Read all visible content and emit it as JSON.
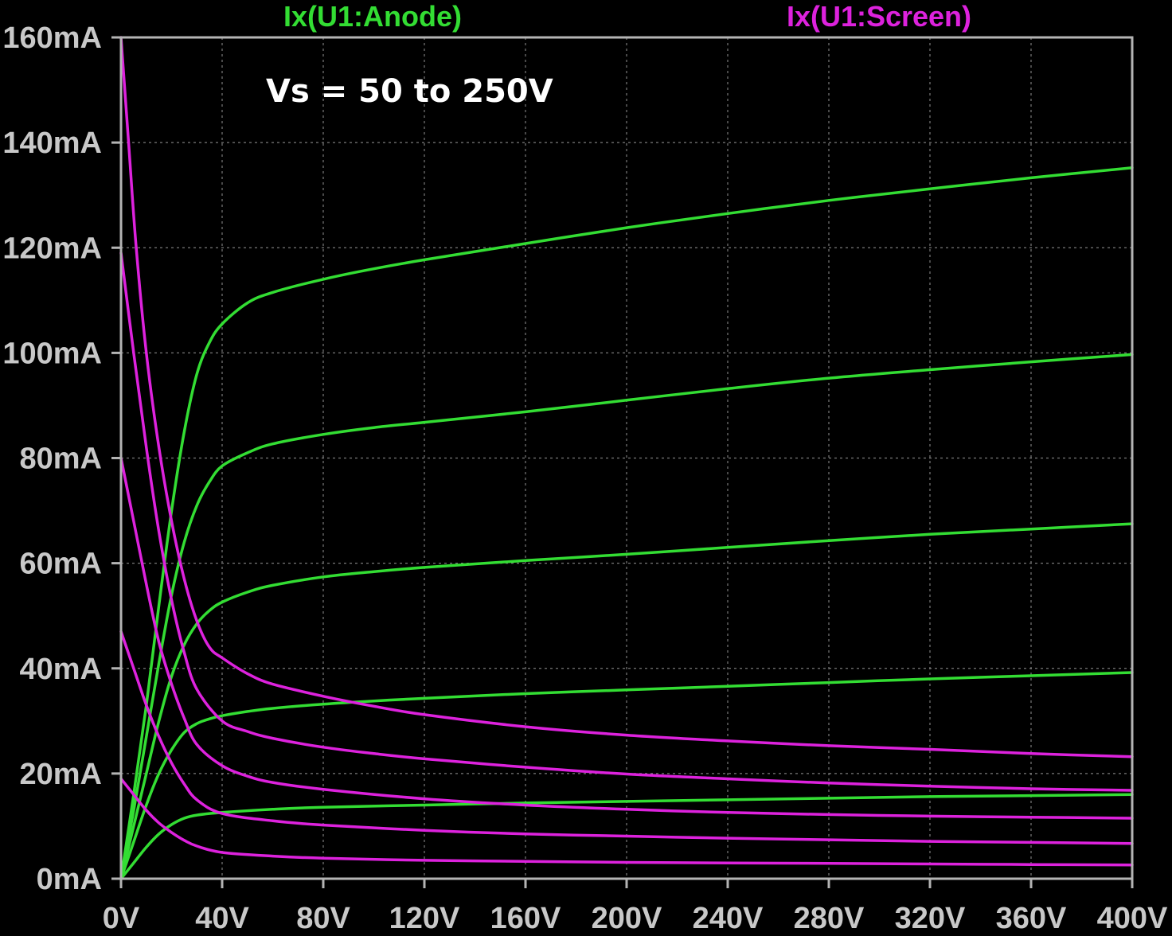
{
  "chart_data": {
    "type": "line",
    "xlim": [
      0,
      400
    ],
    "ylim": [
      0,
      160
    ],
    "x_ticks": [
      "0V",
      "40V",
      "80V",
      "120V",
      "160V",
      "200V",
      "240V",
      "280V",
      "320V",
      "360V",
      "400V"
    ],
    "y_ticks": [
      "0mA",
      "20mA",
      "40mA",
      "60mA",
      "80mA",
      "100mA",
      "120mA",
      "140mA",
      "160mA"
    ],
    "grid": true,
    "legend": [
      {
        "label": "Ix(U1:Anode)",
        "color": "#33dd33"
      },
      {
        "label": "Ix(U1:Screen)",
        "color": "#dd22dd"
      }
    ],
    "annotation": "Vs = 50 to 250V",
    "series": [
      {
        "group": "anode",
        "color": "#33dd33",
        "points": [
          [
            0,
            0
          ],
          [
            5,
            3
          ],
          [
            10,
            6
          ],
          [
            15,
            8.5
          ],
          [
            20,
            10.3
          ],
          [
            25,
            11.5
          ],
          [
            30,
            12.1
          ],
          [
            40,
            12.6
          ],
          [
            60,
            13.2
          ],
          [
            80,
            13.6
          ],
          [
            120,
            14
          ],
          [
            160,
            14.4
          ],
          [
            200,
            14.7
          ],
          [
            240,
            15
          ],
          [
            280,
            15.3
          ],
          [
            320,
            15.6
          ],
          [
            360,
            15.8
          ],
          [
            400,
            16
          ]
        ]
      },
      {
        "group": "anode",
        "color": "#33dd33",
        "points": [
          [
            0,
            0
          ],
          [
            5,
            7
          ],
          [
            10,
            14
          ],
          [
            15,
            20
          ],
          [
            20,
            24.5
          ],
          [
            25,
            27.8
          ],
          [
            30,
            29.5
          ],
          [
            35,
            30.4
          ],
          [
            40,
            31
          ],
          [
            50,
            31.8
          ],
          [
            60,
            32.4
          ],
          [
            80,
            33.2
          ],
          [
            100,
            33.8
          ],
          [
            120,
            34.3
          ],
          [
            160,
            35.2
          ],
          [
            200,
            35.9
          ],
          [
            240,
            36.6
          ],
          [
            280,
            37.3
          ],
          [
            320,
            38
          ],
          [
            360,
            38.6
          ],
          [
            400,
            39.2
          ]
        ]
      },
      {
        "group": "anode",
        "color": "#33dd33",
        "points": [
          [
            0,
            0
          ],
          [
            5,
            10
          ],
          [
            10,
            20
          ],
          [
            15,
            30
          ],
          [
            20,
            38.5
          ],
          [
            25,
            44.5
          ],
          [
            30,
            48.5
          ],
          [
            35,
            51
          ],
          [
            40,
            52.6
          ],
          [
            50,
            54.5
          ],
          [
            60,
            55.8
          ],
          [
            80,
            57.4
          ],
          [
            100,
            58.4
          ],
          [
            120,
            59.2
          ],
          [
            160,
            60.5
          ],
          [
            200,
            61.7
          ],
          [
            240,
            63
          ],
          [
            280,
            64.3
          ],
          [
            320,
            65.5
          ],
          [
            360,
            66.5
          ],
          [
            400,
            67.5
          ]
        ]
      },
      {
        "group": "anode",
        "color": "#33dd33",
        "points": [
          [
            0,
            0
          ],
          [
            5,
            13
          ],
          [
            10,
            27
          ],
          [
            15,
            41
          ],
          [
            20,
            54
          ],
          [
            25,
            64
          ],
          [
            30,
            71
          ],
          [
            35,
            75.5
          ],
          [
            40,
            78.5
          ],
          [
            50,
            81
          ],
          [
            60,
            82.7
          ],
          [
            80,
            84.5
          ],
          [
            100,
            85.8
          ],
          [
            120,
            86.8
          ],
          [
            160,
            88.8
          ],
          [
            200,
            91
          ],
          [
            240,
            93.2
          ],
          [
            280,
            95.2
          ],
          [
            320,
            96.8
          ],
          [
            360,
            98.3
          ],
          [
            400,
            99.7
          ]
        ]
      },
      {
        "group": "anode",
        "color": "#33dd33",
        "points": [
          [
            0,
            0
          ],
          [
            5,
            16
          ],
          [
            10,
            33
          ],
          [
            15,
            52
          ],
          [
            20,
            70
          ],
          [
            25,
            85
          ],
          [
            30,
            96
          ],
          [
            35,
            102
          ],
          [
            40,
            105.5
          ],
          [
            50,
            109.5
          ],
          [
            60,
            111.5
          ],
          [
            80,
            114
          ],
          [
            100,
            116
          ],
          [
            120,
            117.7
          ],
          [
            160,
            120.8
          ],
          [
            200,
            123.8
          ],
          [
            240,
            126.5
          ],
          [
            280,
            129
          ],
          [
            320,
            131.2
          ],
          [
            360,
            133.3
          ],
          [
            400,
            135.2
          ]
        ]
      },
      {
        "group": "screen",
        "color": "#dd22dd",
        "points": [
          [
            0,
            19
          ],
          [
            5,
            16
          ],
          [
            10,
            13
          ],
          [
            15,
            10.6
          ],
          [
            20,
            8.8
          ],
          [
            25,
            7.3
          ],
          [
            30,
            6.2
          ],
          [
            40,
            5
          ],
          [
            60,
            4.3
          ],
          [
            80,
            3.9
          ],
          [
            120,
            3.5
          ],
          [
            160,
            3.3
          ],
          [
            200,
            3.1
          ],
          [
            240,
            3
          ],
          [
            280,
            2.9
          ],
          [
            320,
            2.8
          ],
          [
            360,
            2.7
          ],
          [
            400,
            2.6
          ]
        ]
      },
      {
        "group": "screen",
        "color": "#dd22dd",
        "points": [
          [
            0,
            47
          ],
          [
            5,
            40
          ],
          [
            10,
            33
          ],
          [
            15,
            27
          ],
          [
            20,
            22
          ],
          [
            25,
            18
          ],
          [
            30,
            15
          ],
          [
            40,
            12.4
          ],
          [
            60,
            11
          ],
          [
            80,
            10.2
          ],
          [
            120,
            9.2
          ],
          [
            160,
            8.5
          ],
          [
            200,
            8.1
          ],
          [
            240,
            7.7
          ],
          [
            280,
            7.4
          ],
          [
            320,
            7.1
          ],
          [
            360,
            6.9
          ],
          [
            400,
            6.7
          ]
        ]
      },
      {
        "group": "screen",
        "color": "#dd22dd",
        "points": [
          [
            0,
            80
          ],
          [
            5,
            68
          ],
          [
            10,
            56
          ],
          [
            15,
            45
          ],
          [
            20,
            37
          ],
          [
            25,
            30.5
          ],
          [
            30,
            25.5
          ],
          [
            40,
            21.5
          ],
          [
            50,
            19.5
          ],
          [
            60,
            18.3
          ],
          [
            80,
            17
          ],
          [
            120,
            15.2
          ],
          [
            160,
            14
          ],
          [
            200,
            13.2
          ],
          [
            240,
            12.6
          ],
          [
            280,
            12.2
          ],
          [
            320,
            11.9
          ],
          [
            360,
            11.7
          ],
          [
            400,
            11.5
          ]
        ]
      },
      {
        "group": "screen",
        "color": "#dd22dd",
        "points": [
          [
            0,
            119
          ],
          [
            5,
            100
          ],
          [
            10,
            82
          ],
          [
            15,
            66
          ],
          [
            20,
            53
          ],
          [
            25,
            43
          ],
          [
            30,
            36
          ],
          [
            40,
            30
          ],
          [
            50,
            28
          ],
          [
            60,
            26.7
          ],
          [
            80,
            25
          ],
          [
            100,
            23.8
          ],
          [
            120,
            22.8
          ],
          [
            160,
            21.2
          ],
          [
            200,
            19.9
          ],
          [
            240,
            19
          ],
          [
            280,
            18.2
          ],
          [
            320,
            17.6
          ],
          [
            360,
            17.1
          ],
          [
            400,
            16.8
          ]
        ]
      },
      {
        "group": "screen",
        "color": "#dd22dd",
        "points": [
          [
            0,
            160
          ],
          [
            3,
            140
          ],
          [
            6,
            120
          ],
          [
            10,
            100
          ],
          [
            15,
            82
          ],
          [
            20,
            68
          ],
          [
            25,
            57
          ],
          [
            30,
            49
          ],
          [
            35,
            44
          ],
          [
            40,
            42
          ],
          [
            50,
            39
          ],
          [
            60,
            37
          ],
          [
            80,
            34.7
          ],
          [
            100,
            32.8
          ],
          [
            120,
            31.2
          ],
          [
            160,
            28.9
          ],
          [
            200,
            27.3
          ],
          [
            240,
            26.2
          ],
          [
            280,
            25.3
          ],
          [
            320,
            24.6
          ],
          [
            360,
            23.8
          ],
          [
            400,
            23.2
          ]
        ]
      }
    ]
  }
}
